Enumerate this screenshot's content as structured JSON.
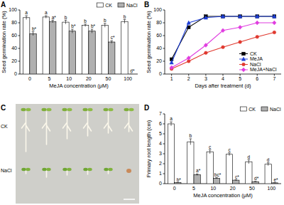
{
  "chart_data": [
    {
      "type": "bar",
      "title": "A",
      "categories": [
        0,
        5,
        10,
        20,
        50,
        100
      ],
      "xlabel": "MeJA concentration (μM)",
      "ylabel": "Seed germination rate (%)",
      "ylim": [
        0,
        100
      ],
      "yticks": [
        0,
        20,
        40,
        60,
        80,
        100
      ],
      "legend": "top-right",
      "series": [
        {
          "name": "CK",
          "color": "#ffffff",
          "values": [
            88,
            89,
            81,
            76,
            76,
            82
          ],
          "errors": [
            3,
            2,
            3,
            2,
            3,
            3
          ],
          "letters": [
            "a",
            "a",
            "b",
            "b",
            "b",
            "b"
          ]
        },
        {
          "name": "NaCl",
          "color": "#b0b0b0",
          "values": [
            63,
            82,
            67,
            67,
            50,
            0
          ],
          "errors": [
            3,
            2,
            3,
            3,
            2,
            0
          ],
          "letters": [
            "b*",
            "a*",
            "b*",
            "b*",
            "c*",
            "d*"
          ]
        }
      ]
    },
    {
      "type": "line",
      "title": "B",
      "x": [
        1,
        2,
        3,
        4,
        5,
        6,
        7
      ],
      "xlim": [
        0.6,
        7.4
      ],
      "xticks": [
        1,
        2,
        3,
        4,
        5,
        6,
        7
      ],
      "xlabel": "Days after treatment (d)",
      "ylabel": "Seed germination rate (%)",
      "ylim": [
        0,
        100
      ],
      "yticks": [
        0,
        20,
        40,
        60,
        80,
        100
      ],
      "legend": "lower-right",
      "series": [
        {
          "name": "CK",
          "color": "#000000",
          "marker": "square",
          "values": [
            23,
            73,
            90,
            90,
            90,
            90,
            90
          ]
        },
        {
          "name": "MeJA",
          "color": "#1f3fd6",
          "marker": "triangle",
          "values": [
            18,
            80,
            88,
            90,
            90,
            90,
            90
          ]
        },
        {
          "name": "NaCl",
          "color": "#e0382e",
          "marker": "circle",
          "values": [
            8,
            20,
            33,
            42,
            50,
            58,
            65
          ]
        },
        {
          "name": "MeJA+NaCl",
          "color": "#e03ce0",
          "marker": "diamond",
          "values": [
            10,
            25,
            45,
            68,
            73,
            80,
            80
          ]
        }
      ]
    },
    {
      "type": "image",
      "title": "C",
      "labels": [
        "CK",
        "NaCl"
      ]
    },
    {
      "type": "bar",
      "title": "D",
      "categories": [
        0,
        5,
        10,
        20,
        50,
        100
      ],
      "xlabel": "MeJA concentration (μM)",
      "ylabel": "Primary root length (cm)",
      "ylim": [
        0,
        7
      ],
      "yticks": [
        0,
        1,
        2,
        3,
        4,
        5,
        6,
        7
      ],
      "legend": "top-right",
      "series": [
        {
          "name": "CK",
          "color": "#ffffff",
          "values": [
            6.0,
            4.2,
            3.2,
            2.95,
            2.2,
            1.95
          ],
          "errors": [
            0.2,
            0.3,
            0.2,
            0.15,
            0.2,
            0.15
          ],
          "letters": [
            "a",
            "b",
            "c",
            "c",
            "d",
            "d"
          ]
        },
        {
          "name": "NaCl",
          "color": "#b0b0b0",
          "values": [
            0.1,
            0.9,
            0.55,
            0.35,
            0.2,
            0.08
          ],
          "errors": [
            0.02,
            0.08,
            0.05,
            0.04,
            0.03,
            0.02
          ],
          "letters": [
            "b*",
            "a*",
            "bc*",
            "c*",
            "d*",
            "e*"
          ]
        }
      ]
    }
  ]
}
